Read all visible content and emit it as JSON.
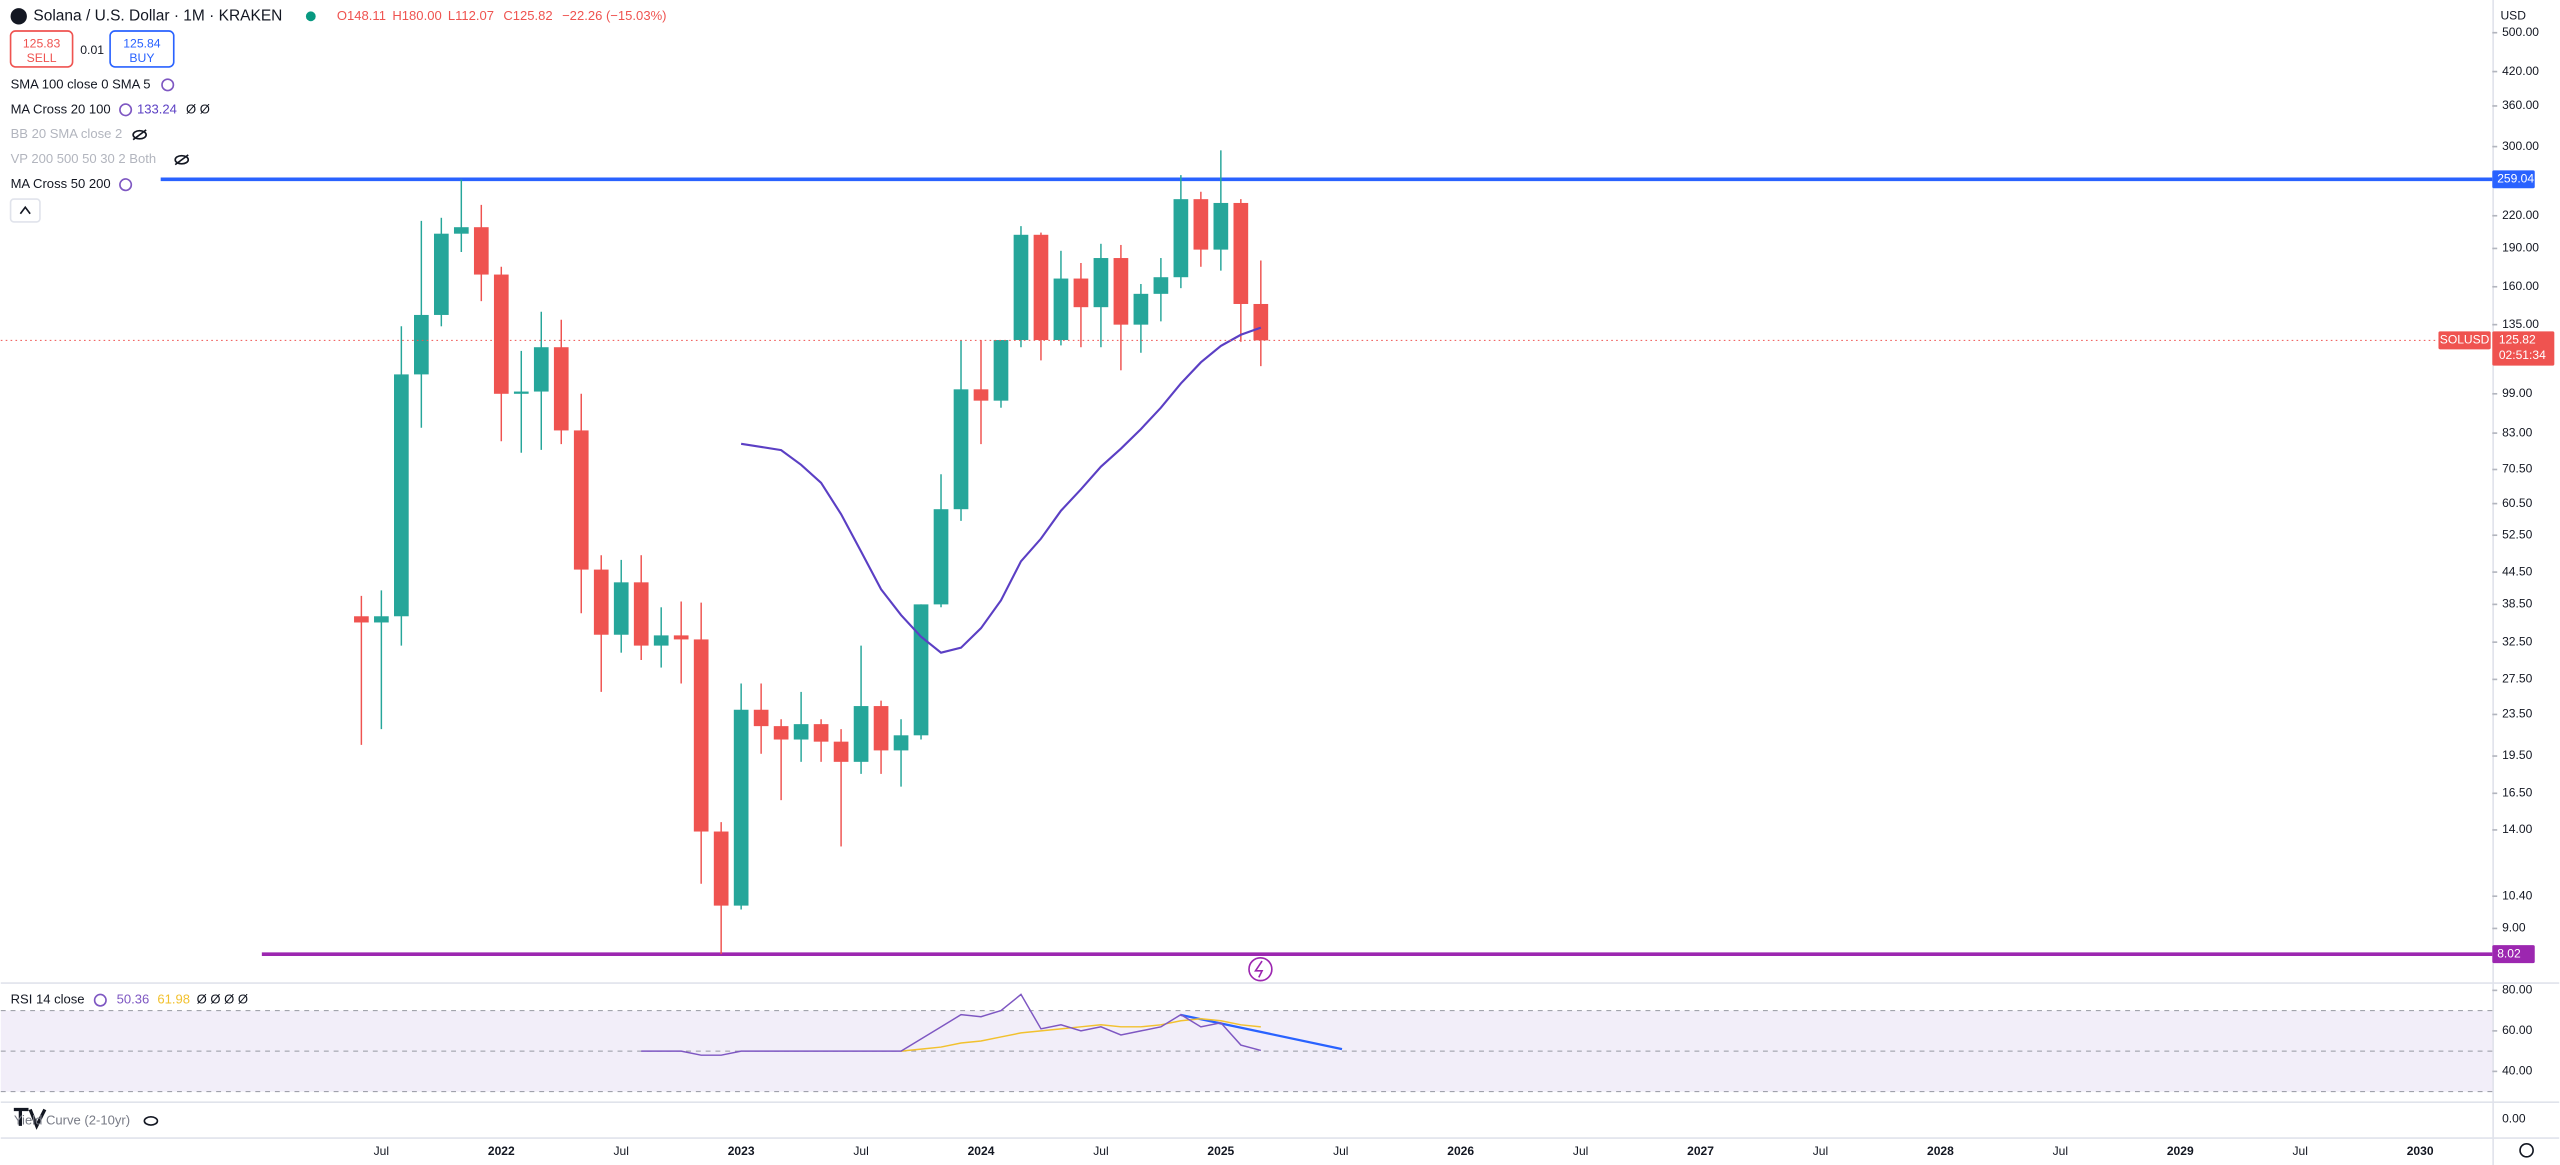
{
  "header": {
    "symbol": "Solana / U.S. Dollar · 1M · KRAKEN",
    "open": "O148.11",
    "high": "H180.00",
    "low": "L112.07",
    "close": "C125.82",
    "change": "−22.26 (−15.03%)",
    "currency": "USD"
  },
  "trade": {
    "sell_price": "125.83",
    "sell": "SELL",
    "spread": "0.01",
    "buy_price": "125.84",
    "buy": "BUY"
  },
  "indicators": [
    {
      "label": "SMA 100 close 0 SMA 5",
      "hidden": false
    },
    {
      "label": "MA Cross 20 100",
      "hidden": false
    },
    {
      "label": "BB 20 SMA close 2",
      "hidden": true
    },
    {
      "label": "VP 200 500 50 30 2 Both",
      "hidden": true
    },
    {
      "label": "MA Cross 50 200",
      "hidden": false
    }
  ],
  "ma_extra": "Ø Ø",
  "chart_data": {
    "type": "candlestick",
    "log_scale": true,
    "up_color": "#26a69a",
    "down_color": "#ef5350",
    "x": [
      "2021-06",
      "2021-07",
      "2021-08",
      "2021-09",
      "2021-10",
      "2021-11",
      "2021-12",
      "2022-01",
      "2022-02",
      "2022-03",
      "2022-04",
      "2022-05",
      "2022-06",
      "2022-07",
      "2022-08",
      "2022-09",
      "2022-10",
      "2022-11",
      "2022-12",
      "2023-01",
      "2023-02",
      "2023-03",
      "2023-04",
      "2023-05",
      "2023-06",
      "2023-07",
      "2023-08",
      "2023-09",
      "2023-10",
      "2023-11",
      "2023-12",
      "2024-01",
      "2024-02",
      "2024-03",
      "2024-04",
      "2024-05",
      "2024-06",
      "2024-07",
      "2024-08",
      "2024-09",
      "2024-10",
      "2024-11",
      "2024-12",
      "2025-01",
      "2025-02",
      "2025-03"
    ],
    "open": [
      36.5,
      35.5,
      36.5,
      108,
      141,
      203,
      209,
      169,
      99,
      100,
      122,
      84,
      45,
      33.6,
      42.5,
      32,
      33.5,
      32.9,
      13.9,
      9.97,
      24,
      22.3,
      21,
      22.5,
      20.8,
      19,
      24.4,
      20,
      21.4,
      38.5,
      59,
      101,
      96,
      126,
      202,
      126,
      166,
      146,
      182,
      135,
      155,
      167,
      237,
      189,
      233,
      148.11
    ],
    "high": [
      40,
      41,
      134,
      215,
      218,
      259,
      231,
      175,
      120,
      143,
      138,
      99,
      48,
      47,
      48,
      38,
      39,
      38.8,
      14.5,
      27,
      27,
      23,
      26,
      23,
      22,
      32,
      25,
      23,
      38.5,
      69,
      126,
      126,
      126,
      210,
      204,
      188,
      178,
      194,
      193,
      162,
      182,
      264,
      245,
      295,
      237,
      180
    ],
    "low": [
      20.5,
      22,
      32,
      85,
      134,
      187,
      150,
      80,
      76,
      77,
      79,
      37,
      26,
      31,
      30,
      29,
      27,
      11,
      8.02,
      9.8,
      19.7,
      16,
      19,
      19,
      13,
      18,
      18,
      17,
      21,
      38,
      56,
      79,
      93,
      122,
      115,
      123,
      122,
      122,
      110,
      119,
      137,
      159,
      175,
      172,
      125,
      112.07
    ],
    "close": [
      35.5,
      36.5,
      108,
      141,
      203,
      209,
      169,
      99,
      100,
      122,
      84,
      45,
      33.6,
      42.5,
      32,
      33.5,
      32.9,
      13.9,
      9.97,
      24,
      22.3,
      21,
      22.5,
      20.8,
      19,
      24.4,
      20,
      21.4,
      38.5,
      59,
      101,
      96,
      126,
      202,
      126,
      166,
      146,
      182,
      135,
      155,
      167,
      237,
      189,
      233,
      148.11,
      125.82
    ],
    "ma": {
      "color": "#5b3fc4",
      "values": [
        null,
        null,
        null,
        null,
        null,
        null,
        null,
        null,
        null,
        null,
        null,
        null,
        null,
        null,
        null,
        null,
        null,
        null,
        null,
        79.1,
        78,
        76.9,
        72,
        66.4,
        57.7,
        48.8,
        41.2,
        36.7,
        33.3,
        31.0,
        31.7,
        34.6,
        39.2,
        46.7,
        51.7,
        58.6,
        64.5,
        71.4,
        77.4,
        84.5,
        93,
        103.7,
        114,
        122.7,
        129,
        133.24
      ]
    },
    "ylim": [
      7.07,
      579
    ],
    "yticks": [
      {
        "value": 500,
        "label": "500.00"
      },
      {
        "value": 420,
        "label": "420.00"
      },
      {
        "value": 360,
        "label": "360.00"
      },
      {
        "value": 300,
        "label": "300.00"
      },
      {
        "value": 220,
        "label": "220.00"
      },
      {
        "value": 190,
        "label": "190.00"
      },
      {
        "value": 160,
        "label": "160.00"
      },
      {
        "value": 135,
        "label": "135.00"
      },
      {
        "value": 99,
        "label": "99.00"
      },
      {
        "value": 83,
        "label": "83.00"
      },
      {
        "value": 70.5,
        "label": "70.50"
      },
      {
        "value": 60.5,
        "label": "60.50"
      },
      {
        "value": 52.5,
        "label": "52.50"
      },
      {
        "value": 44.5,
        "label": "44.50"
      },
      {
        "value": 38.5,
        "label": "38.50"
      },
      {
        "value": 32.5,
        "label": "32.50"
      },
      {
        "value": 27.5,
        "label": "27.50"
      },
      {
        "value": 23.5,
        "label": "23.50"
      },
      {
        "value": 19.5,
        "label": "19.50"
      },
      {
        "value": 16.5,
        "label": "16.50"
      },
      {
        "value": 14,
        "label": "14.00"
      },
      {
        "value": 10.4,
        "label": "10.40"
      },
      {
        "value": 9,
        "label": "9.00"
      }
    ],
    "xticks": [
      {
        "value": "2021-07",
        "label": "Jul"
      },
      {
        "value": "2022-01",
        "label": "2022"
      },
      {
        "value": "2022-07",
        "label": "Jul"
      },
      {
        "value": "2023-01",
        "label": "2023"
      },
      {
        "value": "2023-07",
        "label": "Jul"
      },
      {
        "value": "2024-01",
        "label": "2024"
      },
      {
        "value": "2024-07",
        "label": "Jul"
      },
      {
        "value": "2025-01",
        "label": "2025"
      },
      {
        "value": "2025-07",
        "label": "Jul"
      },
      {
        "value": "2026-01",
        "label": "2026"
      },
      {
        "value": "2026-07",
        "label": "Jul"
      },
      {
        "value": "2027-01",
        "label": "2027"
      },
      {
        "value": "2027-07",
        "label": "Jul"
      },
      {
        "value": "2028-01",
        "label": "2028"
      },
      {
        "value": "2028-07",
        "label": "Jul"
      },
      {
        "value": "2029-01",
        "label": "2029"
      },
      {
        "value": "2029-07",
        "label": "Jul"
      },
      {
        "value": "2030-01",
        "label": "2030"
      }
    ],
    "levels": [
      {
        "value": 259.04,
        "color": "#2962ff"
      },
      {
        "value": 8.02,
        "color": "#9c27b0"
      }
    ],
    "symbol_label": "SOLUSD",
    "countdown": "02:51:34",
    "rsi": {
      "title": "RSI 14 close",
      "color": "#7e57c2",
      "ma_color": "#f2c12e",
      "extra": "Ø Ø Ø Ø",
      "values": [
        null,
        null,
        null,
        null,
        null,
        null,
        null,
        null,
        null,
        null,
        null,
        null,
        null,
        null,
        50,
        50,
        50,
        48,
        48,
        50,
        50,
        50,
        50,
        50,
        50,
        50,
        50,
        50,
        56,
        62,
        68,
        67,
        70,
        78,
        61,
        63,
        60,
        62,
        58,
        60,
        62,
        68,
        62,
        64,
        53,
        50.36
      ],
      "ma_values": [
        null,
        null,
        null,
        null,
        null,
        null,
        null,
        null,
        null,
        null,
        null,
        null,
        null,
        null,
        null,
        null,
        null,
        null,
        null,
        null,
        null,
        null,
        null,
        null,
        null,
        null,
        null,
        50,
        51,
        52,
        54,
        55,
        57,
        59,
        60,
        61,
        62,
        63,
        62,
        62,
        63,
        65,
        66,
        65,
        63,
        61.98
      ],
      "ylim": [
        26,
        83.2
      ],
      "yticks": [
        {
          "value": 80,
          "label": "80.00"
        },
        {
          "value": 60,
          "label": "60.00"
        },
        {
          "value": 40,
          "label": "40.00"
        }
      ],
      "band": [
        30,
        70
      ],
      "mid": 50
    },
    "yield": {
      "title": "Yield Curve (2-10yr)",
      "ylim": [
        -1,
        1
      ],
      "yticks": [
        {
          "value": 0,
          "label": "0.00"
        }
      ]
    }
  }
}
